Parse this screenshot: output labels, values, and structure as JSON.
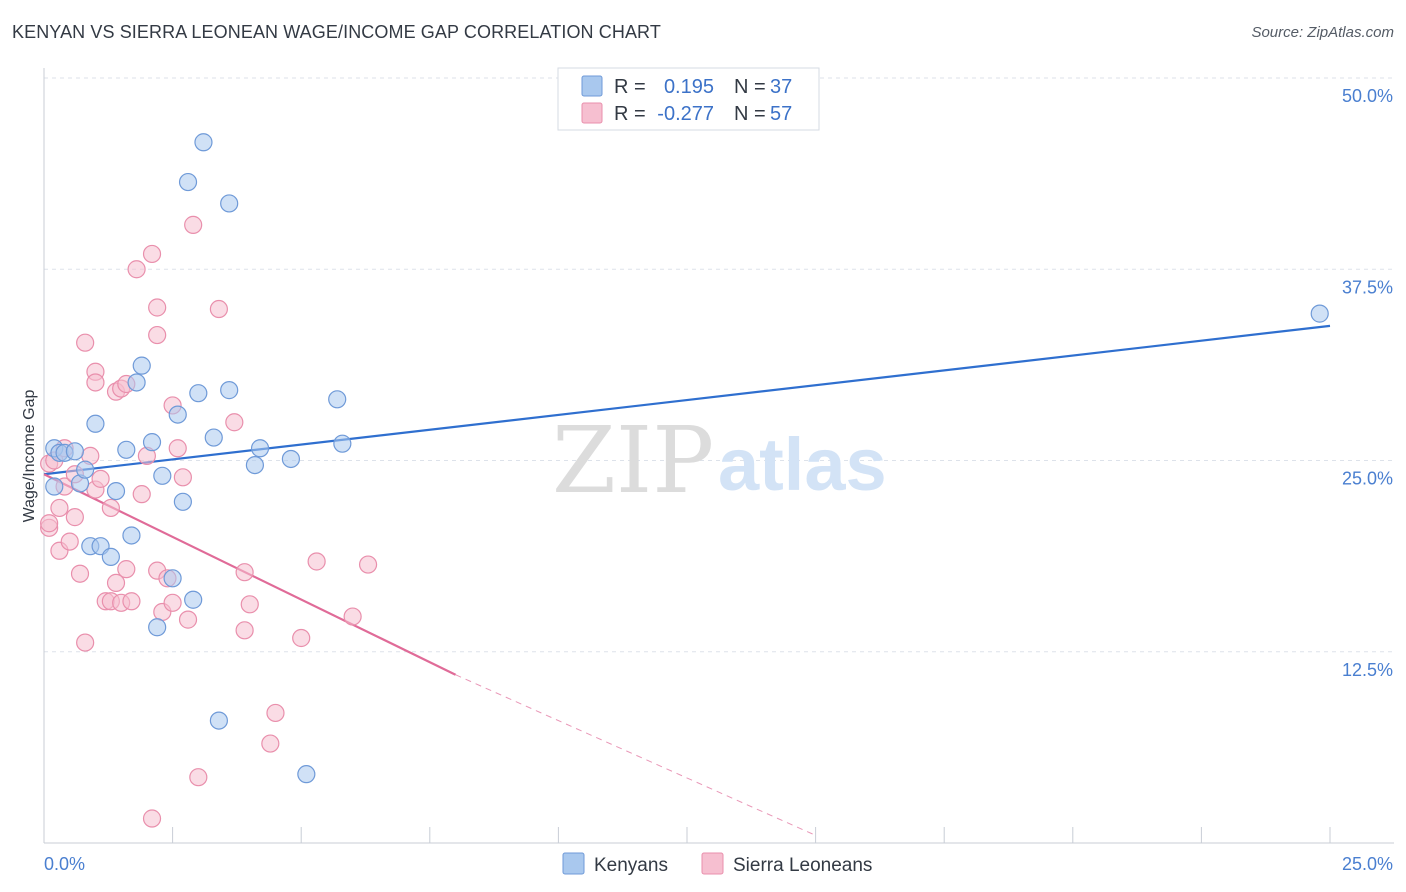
{
  "title": "KENYAN VS SIERRA LEONEAN WAGE/INCOME GAP CORRELATION CHART",
  "source": "Source: ZipAtlas.com",
  "watermark": {
    "zip": "ZIP",
    "atlas": "atlas"
  },
  "colors": {
    "blue_fill": "#a9c8ee",
    "blue_stroke": "#6f9ad8",
    "blue_line": "#2f6fcf",
    "pink_fill": "#f6bfd0",
    "pink_stroke": "#e98fac",
    "pink_line": "#e06b98",
    "grid": "#dde2ea",
    "tick_text": "#4a7fd0"
  },
  "chart_data": {
    "type": "scatter",
    "title": "KENYAN VS SIERRA LEONEAN WAGE/INCOME GAP CORRELATION CHART",
    "ylabel": "Wage/Income Gap",
    "xlabel": "",
    "xlim": [
      0,
      25
    ],
    "ylim": [
      0,
      50
    ],
    "x_tick_labels": [
      "0.0%",
      "25.0%"
    ],
    "y_ticks": [
      12.5,
      25.0,
      37.5,
      50.0
    ],
    "y_tick_labels": [
      "12.5%",
      "25.0%",
      "37.5%",
      "50.0%"
    ],
    "grid": true,
    "legend": {
      "position": "top-center",
      "entries": [
        {
          "r_label": "R =",
          "r_value": "0.195",
          "n_label": "N =",
          "n_value": "37"
        },
        {
          "r_label": "R =",
          "r_value": "-0.277",
          "n_label": "N =",
          "n_value": "57"
        }
      ]
    },
    "series": [
      {
        "name": "Kenyans",
        "color": "#a9c8ee",
        "trend": {
          "x0": 0,
          "y0": 24.1,
          "x1": 25,
          "y1": 33.8
        },
        "points": [
          [
            0.2,
            23.3
          ],
          [
            0.2,
            25.8
          ],
          [
            0.3,
            25.5
          ],
          [
            0.4,
            25.5
          ],
          [
            0.6,
            25.6
          ],
          [
            0.7,
            23.5
          ],
          [
            0.8,
            24.4
          ],
          [
            0.9,
            19.4
          ],
          [
            1.0,
            27.4
          ],
          [
            1.1,
            19.4
          ],
          [
            1.3,
            18.7
          ],
          [
            1.4,
            23.0
          ],
          [
            1.6,
            25.7
          ],
          [
            1.7,
            20.1
          ],
          [
            1.8,
            30.1
          ],
          [
            1.9,
            31.2
          ],
          [
            2.1,
            26.2
          ],
          [
            2.2,
            14.1
          ],
          [
            2.3,
            24.0
          ],
          [
            2.5,
            17.3
          ],
          [
            2.6,
            28.0
          ],
          [
            2.7,
            22.3
          ],
          [
            2.8,
            43.2
          ],
          [
            2.9,
            15.9
          ],
          [
            3.0,
            29.4
          ],
          [
            3.1,
            45.8
          ],
          [
            3.3,
            26.5
          ],
          [
            3.4,
            8.0
          ],
          [
            3.6,
            29.6
          ],
          [
            3.6,
            41.8
          ],
          [
            4.1,
            24.7
          ],
          [
            4.2,
            25.8
          ],
          [
            4.8,
            25.1
          ],
          [
            5.1,
            4.5
          ],
          [
            5.7,
            29.0
          ],
          [
            5.8,
            26.1
          ],
          [
            24.8,
            34.6
          ]
        ]
      },
      {
        "name": "Sierra Leoneans",
        "color": "#f6bfd0",
        "trend": {
          "x0": 0,
          "y0": 24.1,
          "x1": 8.0,
          "y1": 11.0
        },
        "trend_dashed_to": {
          "x": 15.0,
          "y": 0.5
        },
        "points": [
          [
            0.1,
            20.6
          ],
          [
            0.1,
            20.9
          ],
          [
            0.1,
            24.8
          ],
          [
            0.2,
            25.0
          ],
          [
            0.3,
            21.9
          ],
          [
            0.3,
            19.1
          ],
          [
            0.4,
            23.3
          ],
          [
            0.5,
            19.7
          ],
          [
            0.6,
            24.1
          ],
          [
            0.6,
            21.3
          ],
          [
            0.7,
            17.6
          ],
          [
            0.8,
            32.7
          ],
          [
            0.8,
            13.1
          ],
          [
            0.9,
            25.3
          ],
          [
            1.0,
            23.1
          ],
          [
            1.0,
            30.8
          ],
          [
            1.0,
            30.1
          ],
          [
            1.1,
            23.8
          ],
          [
            1.2,
            15.8
          ],
          [
            1.3,
            21.9
          ],
          [
            1.3,
            15.8
          ],
          [
            1.4,
            17.0
          ],
          [
            1.4,
            29.5
          ],
          [
            1.5,
            15.7
          ],
          [
            1.5,
            29.7
          ],
          [
            1.6,
            17.9
          ],
          [
            1.6,
            30.0
          ],
          [
            1.7,
            15.8
          ],
          [
            1.8,
            37.5
          ],
          [
            1.9,
            22.8
          ],
          [
            2.0,
            25.3
          ],
          [
            2.1,
            1.6
          ],
          [
            2.1,
            38.5
          ],
          [
            2.2,
            17.8
          ],
          [
            2.2,
            33.2
          ],
          [
            2.2,
            35.0
          ],
          [
            2.3,
            15.1
          ],
          [
            2.4,
            17.3
          ],
          [
            2.5,
            15.7
          ],
          [
            2.5,
            28.6
          ],
          [
            2.6,
            25.8
          ],
          [
            2.7,
            23.9
          ],
          [
            2.8,
            14.6
          ],
          [
            2.9,
            40.4
          ],
          [
            3.0,
            4.3
          ],
          [
            3.4,
            34.9
          ],
          [
            3.7,
            27.5
          ],
          [
            3.9,
            13.9
          ],
          [
            3.9,
            17.7
          ],
          [
            4.0,
            15.6
          ],
          [
            4.4,
            6.5
          ],
          [
            4.5,
            8.5
          ],
          [
            5.0,
            13.4
          ],
          [
            5.3,
            18.4
          ],
          [
            6.0,
            14.8
          ],
          [
            6.3,
            18.2
          ],
          [
            0.4,
            25.8
          ]
        ]
      }
    ]
  },
  "bottom_legend": [
    {
      "label": "Kenyans"
    },
    {
      "label": "Sierra Leoneans"
    }
  ]
}
